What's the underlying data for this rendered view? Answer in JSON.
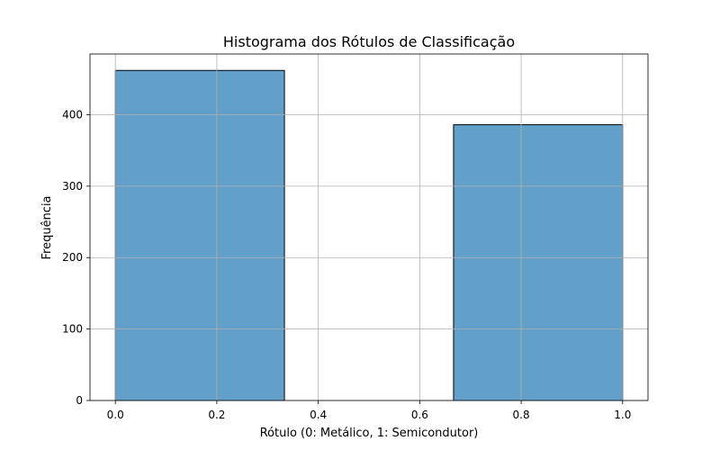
{
  "chart_data": {
    "type": "bar",
    "title": "Histograma dos Rótulos de Classificação",
    "xlabel": "Rótulo (0: Metálico, 1: Semicondutor)",
    "ylabel": "Frequência",
    "bins": [
      {
        "x0": 0.0,
        "x1": 0.3333,
        "value": 462
      },
      {
        "x0": 0.3333,
        "x1": 0.6667,
        "value": 0
      },
      {
        "x0": 0.6667,
        "x1": 1.0,
        "value": 386
      }
    ],
    "xlim": [
      -0.05,
      1.05
    ],
    "ylim": [
      0,
      485
    ],
    "xticks": [
      0.0,
      0.2,
      0.4,
      0.6,
      0.8,
      1.0
    ],
    "xtick_labels": [
      "0.0",
      "0.2",
      "0.4",
      "0.6",
      "0.8",
      "1.0"
    ],
    "yticks": [
      0,
      100,
      200,
      300,
      400
    ],
    "ytick_labels": [
      "0",
      "100",
      "200",
      "300",
      "400"
    ],
    "grid": true,
    "bar_color": "#1f77b4",
    "bar_alpha": 0.7,
    "bar_edge_color": "#000000"
  }
}
